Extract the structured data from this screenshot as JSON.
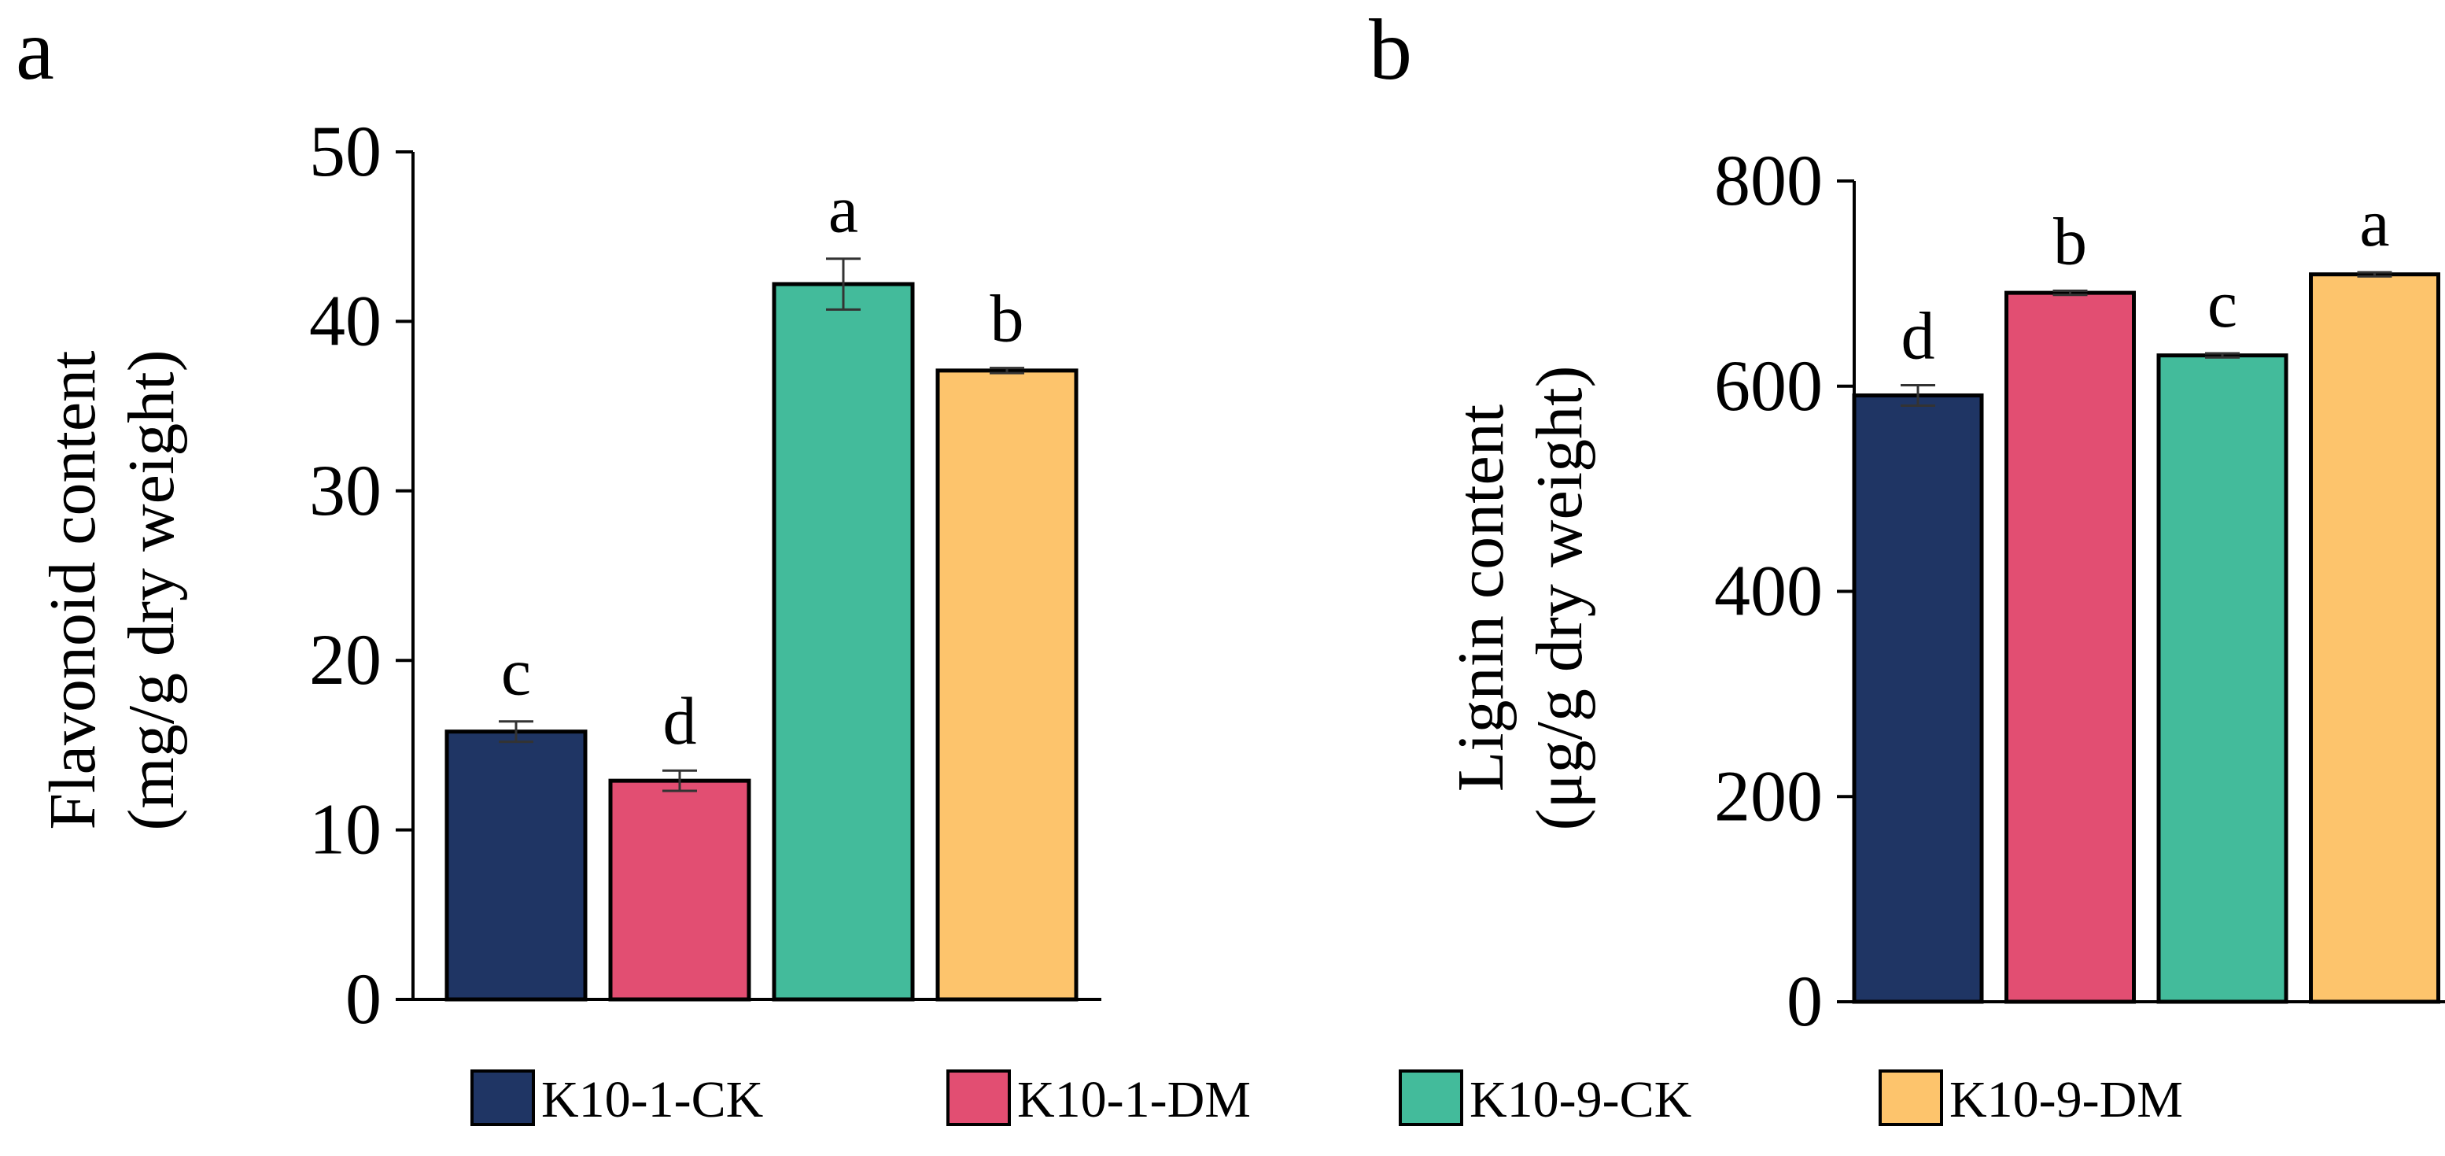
{
  "colors": {
    "K10-1-CK": "#1F3564",
    "K10-1-DM": "#E24E72",
    "K10-9-CK": "#43BB9B",
    "K10-9-DM": "#FDC46C"
  },
  "legend": {
    "items": [
      {
        "label": "K10-1-CK",
        "color": "#1F3564"
      },
      {
        "label": "K10-1-DM",
        "color": "#E24E72"
      },
      {
        "label": "K10-9-CK",
        "color": "#43BB9B"
      },
      {
        "label": "K10-9-DM",
        "color": "#FDC46C"
      }
    ]
  },
  "chart_data": [
    {
      "panel": "a",
      "type": "bar",
      "categories": [
        "K10-1-CK",
        "K10-1-DM",
        "K10-9-CK",
        "K10-9-DM"
      ],
      "values": [
        15.8,
        12.9,
        42.2,
        37.1
      ],
      "errors": [
        0.6,
        0.6,
        1.5,
        0.15
      ],
      "significance": [
        "c",
        "d",
        "a",
        "b"
      ],
      "ylabel_line1": "Flavonoid content",
      "ylabel_line2": "(mg/g dry weight)",
      "ylim": [
        0,
        50
      ],
      "yticks": [
        0,
        10,
        20,
        30,
        40,
        50
      ],
      "ytick_labels": [
        "0",
        "10",
        "20",
        "30",
        "40",
        "50"
      ]
    },
    {
      "panel": "b",
      "type": "bar",
      "categories": [
        "K10-1-CK",
        "K10-1-DM",
        "K10-9-CK",
        "K10-9-DM"
      ],
      "values": [
        591,
        691,
        630,
        709
      ],
      "errors": [
        10,
        2,
        2,
        2
      ],
      "significance": [
        "d",
        "b",
        "c",
        "a"
      ],
      "ylabel_line1": "Lignin content",
      "ylabel_line2": "(μg/g dry weight)",
      "ylim": [
        0,
        800
      ],
      "yticks": [
        0,
        200,
        400,
        600,
        800
      ],
      "ytick_labels": [
        "0",
        "200",
        "400",
        "600",
        "800"
      ]
    }
  ]
}
